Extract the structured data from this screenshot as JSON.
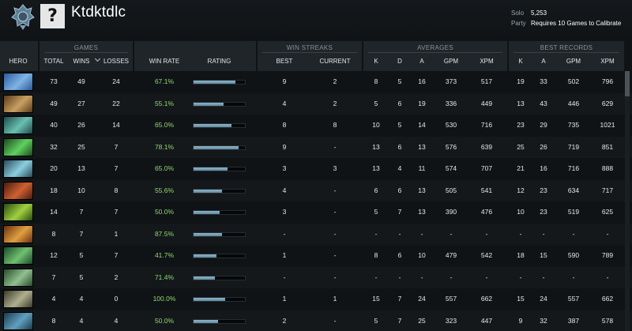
{
  "profile": {
    "name": "Ktdktdlc",
    "avatar_glyph": "?",
    "medal_icon": "medal-icon",
    "solo_label": "Solo",
    "solo_value": "5,253",
    "party_label": "Party",
    "party_value": "Requires 10 Games to Calibrate"
  },
  "headers": {
    "hero": "HERO",
    "games": "GAMES",
    "total": "TOTAL",
    "wins": "WINS",
    "losses": "LOSSES",
    "win_rate": "WIN RATE",
    "rating": "RATING",
    "win_streaks": "WIN STREAKS",
    "best": "BEST",
    "current": "CURRENT",
    "averages": "AVERAGES",
    "k": "K",
    "d": "D",
    "a": "A",
    "gpm": "GPM",
    "xpm": "XPM",
    "best_records": "BEST RECORDS",
    "rk": "K",
    "ra": "A",
    "rgpm": "GPM",
    "rxpm": "XPM"
  },
  "rows": [
    {
      "hero_colors": [
        "#2a5a9a",
        "#7fb4e6"
      ],
      "total": "73",
      "wins": "49",
      "losses": "24",
      "win_rate": "67.1%",
      "rating": 0.82,
      "best": "9",
      "current": "2",
      "k": "8",
      "d": "5",
      "a": "16",
      "gpm": "373",
      "xpm": "517",
      "rk": "19",
      "ra": "33",
      "rgpm": "502",
      "rxpm": "796"
    },
    {
      "hero_colors": [
        "#5a3a1a",
        "#c8a060"
      ],
      "total": "49",
      "wins": "27",
      "losses": "22",
      "win_rate": "55.1%",
      "rating": 0.58,
      "best": "4",
      "current": "2",
      "k": "5",
      "d": "6",
      "a": "19",
      "gpm": "336",
      "xpm": "449",
      "rk": "13",
      "ra": "43",
      "rgpm": "446",
      "rxpm": "629"
    },
    {
      "hero_colors": [
        "#1e4a4a",
        "#6ac0b0"
      ],
      "total": "40",
      "wins": "26",
      "losses": "14",
      "win_rate": "65.0%",
      "rating": 0.74,
      "best": "8",
      "current": "8",
      "k": "10",
      "d": "5",
      "a": "14",
      "gpm": "530",
      "xpm": "716",
      "rk": "23",
      "ra": "29",
      "rgpm": "735",
      "rxpm": "1021"
    },
    {
      "hero_colors": [
        "#1c4a1c",
        "#5fd060"
      ],
      "total": "32",
      "wins": "25",
      "losses": "7",
      "win_rate": "78.1%",
      "rating": 0.88,
      "best": "9",
      "current": "-",
      "k": "13",
      "d": "6",
      "a": "13",
      "gpm": "576",
      "xpm": "639",
      "rk": "25",
      "ra": "26",
      "rgpm": "719",
      "rxpm": "851"
    },
    {
      "hero_colors": [
        "#2a4a5a",
        "#8ad0e0"
      ],
      "total": "20",
      "wins": "13",
      "losses": "7",
      "win_rate": "65.0%",
      "rating": 0.66,
      "best": "3",
      "current": "3",
      "k": "13",
      "d": "4",
      "a": "11",
      "gpm": "574",
      "xpm": "707",
      "rk": "21",
      "ra": "16",
      "rgpm": "716",
      "rxpm": "888"
    },
    {
      "hero_colors": [
        "#4a1a10",
        "#d06030"
      ],
      "total": "18",
      "wins": "10",
      "losses": "8",
      "win_rate": "55.6%",
      "rating": 0.56,
      "best": "4",
      "current": "-",
      "k": "6",
      "d": "6",
      "a": "13",
      "gpm": "505",
      "xpm": "541",
      "rk": "12",
      "ra": "23",
      "rgpm": "634",
      "rxpm": "717"
    },
    {
      "hero_colors": [
        "#2a4a10",
        "#a0d040"
      ],
      "total": "14",
      "wins": "7",
      "losses": "7",
      "win_rate": "50.0%",
      "rating": 0.5,
      "best": "3",
      "current": "-",
      "k": "5",
      "d": "7",
      "a": "13",
      "gpm": "390",
      "xpm": "476",
      "rk": "10",
      "ra": "23",
      "rgpm": "519",
      "rxpm": "625"
    },
    {
      "hero_colors": [
        "#6a3010",
        "#e0a040"
      ],
      "total": "8",
      "wins": "7",
      "losses": "1",
      "win_rate": "87.5%",
      "rating": 0.55,
      "best": "-",
      "current": "-",
      "k": "-",
      "d": "-",
      "a": "-",
      "gpm": "-",
      "xpm": "-",
      "rk": "-",
      "ra": "-",
      "rgpm": "-",
      "rxpm": "-"
    },
    {
      "hero_colors": [
        "#1a4a2a",
        "#70c070"
      ],
      "total": "12",
      "wins": "5",
      "losses": "7",
      "win_rate": "41.7%",
      "rating": 0.44,
      "best": "1",
      "current": "-",
      "k": "8",
      "d": "6",
      "a": "10",
      "gpm": "479",
      "xpm": "542",
      "rk": "18",
      "ra": "15",
      "rgpm": "590",
      "rxpm": "789"
    },
    {
      "hero_colors": [
        "#2a4a2a",
        "#90c090"
      ],
      "total": "7",
      "wins": "5",
      "losses": "2",
      "win_rate": "71.4%",
      "rating": 0.42,
      "best": "-",
      "current": "-",
      "k": "-",
      "d": "-",
      "a": "-",
      "gpm": "-",
      "xpm": "-",
      "rk": "-",
      "ra": "-",
      "rgpm": "-",
      "rxpm": "-"
    },
    {
      "hero_colors": [
        "#3a3a2a",
        "#b0b090"
      ],
      "total": "4",
      "wins": "4",
      "losses": "0",
      "win_rate": "100.0%",
      "rating": 0.62,
      "best": "1",
      "current": "1",
      "k": "15",
      "d": "7",
      "a": "24",
      "gpm": "557",
      "xpm": "662",
      "rk": "15",
      "ra": "24",
      "rgpm": "557",
      "rxpm": "662"
    },
    {
      "hero_colors": [
        "#1a3a4a",
        "#60a0c0"
      ],
      "total": "8",
      "wins": "4",
      "losses": "4",
      "win_rate": "50.0%",
      "rating": 0.48,
      "best": "2",
      "current": "-",
      "k": "5",
      "d": "7",
      "a": "25",
      "gpm": "323",
      "xpm": "447",
      "rk": "9",
      "ra": "32",
      "rgpm": "387",
      "rxpm": "578"
    }
  ]
}
